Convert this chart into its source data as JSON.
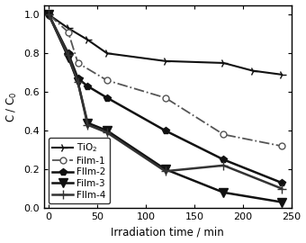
{
  "series": {
    "TiO2": {
      "x": [
        0,
        20,
        40,
        60,
        120,
        180,
        210,
        240
      ],
      "y": [
        1.0,
        0.93,
        0.87,
        0.8,
        0.76,
        0.75,
        0.71,
        0.69
      ],
      "color": "#111111",
      "linestyle": "-",
      "marker": "4",
      "markersize": 7,
      "markerfacecolor": "#111111",
      "linewidth": 1.5,
      "label": "TiO$_2$"
    },
    "Film-1": {
      "x": [
        0,
        20,
        30,
        60,
        120,
        180,
        240
      ],
      "y": [
        1.0,
        0.91,
        0.75,
        0.66,
        0.57,
        0.38,
        0.32
      ],
      "color": "#555555",
      "linestyle": "-.",
      "marker": "o",
      "markersize": 5,
      "markerfacecolor": "white",
      "linewidth": 1.3,
      "label": "Film-1"
    },
    "Film-2": {
      "x": [
        0,
        20,
        30,
        40,
        60,
        120,
        180,
        240
      ],
      "y": [
        1.0,
        0.8,
        0.67,
        0.63,
        0.57,
        0.4,
        0.25,
        0.13
      ],
      "color": "#111111",
      "linestyle": "-",
      "marker": "p",
      "markersize": 6,
      "markerfacecolor": "#111111",
      "linewidth": 1.8,
      "label": "FIlm-2"
    },
    "Film-3": {
      "x": [
        0,
        20,
        30,
        40,
        60,
        120,
        180,
        240
      ],
      "y": [
        1.0,
        0.78,
        0.65,
        0.44,
        0.4,
        0.2,
        0.08,
        0.03
      ],
      "color": "#111111",
      "linestyle": "-",
      "marker": "v",
      "markersize": 7,
      "markerfacecolor": "#111111",
      "linewidth": 1.8,
      "label": "Film-3"
    },
    "Film-4": {
      "x": [
        0,
        20,
        30,
        40,
        60,
        120,
        180,
        240
      ],
      "y": [
        1.0,
        0.79,
        0.65,
        0.43,
        0.39,
        0.19,
        0.22,
        0.1
      ],
      "color": "#333333",
      "linestyle": "-",
      "marker": "+",
      "markersize": 7,
      "markerfacecolor": "#333333",
      "linewidth": 1.8,
      "label": "FIlm-4"
    }
  },
  "xlabel": "Irradiation time / min",
  "ylabel": "C / C$_0$",
  "xlim": [
    -5,
    250
  ],
  "ylim": [
    0.0,
    1.05
  ],
  "xticks": [
    0,
    50,
    100,
    150,
    200,
    250
  ],
  "yticks": [
    0.0,
    0.2,
    0.4,
    0.6,
    0.8,
    1.0
  ],
  "background_color": "#ffffff",
  "legend_loc": "lower left"
}
